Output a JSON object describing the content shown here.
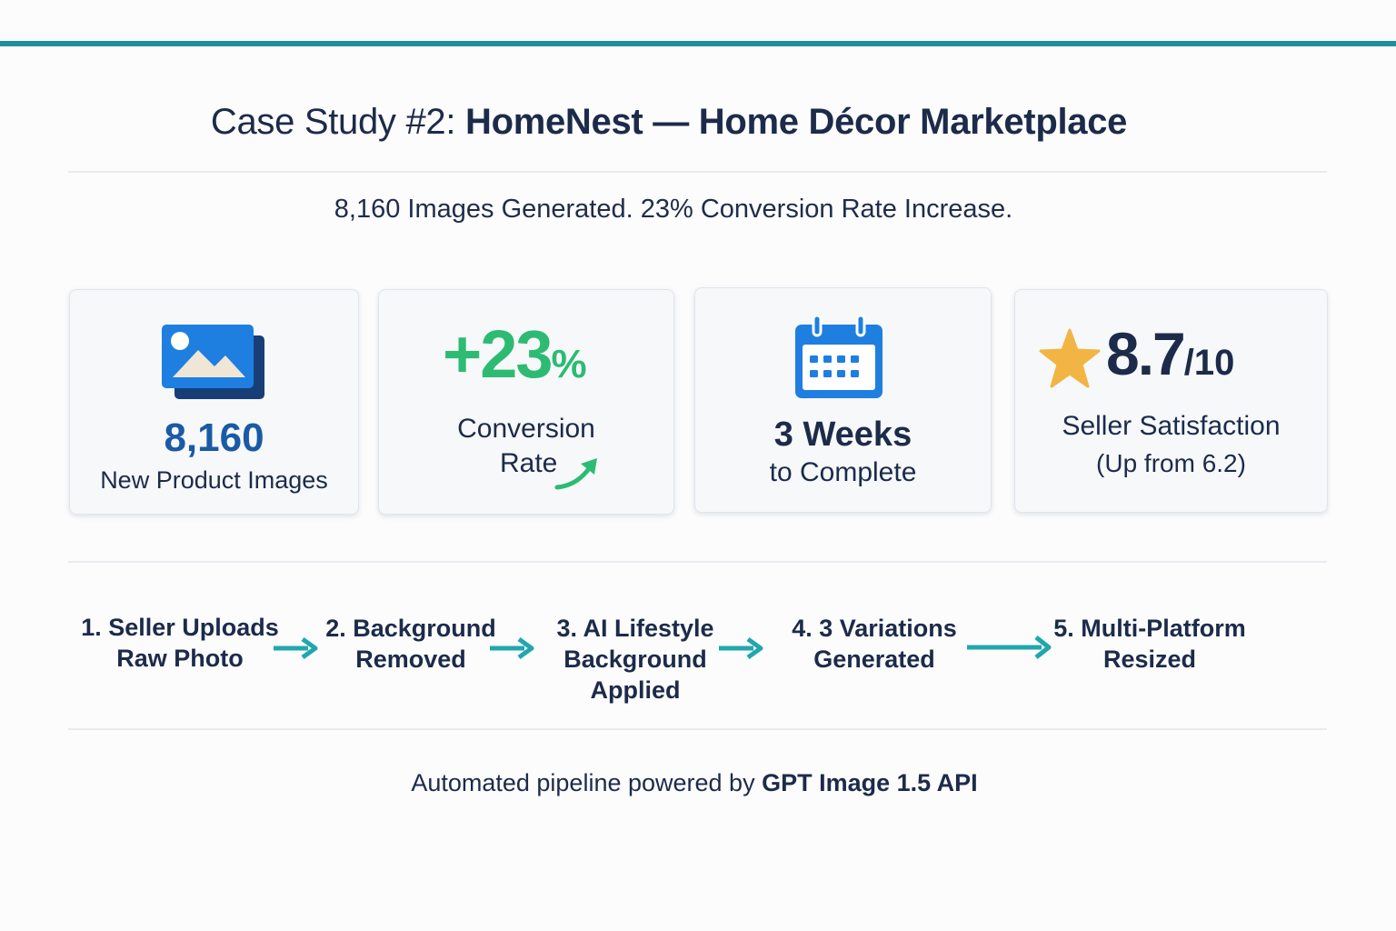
{
  "header": {
    "title_prefix": "Case Study #2:",
    "title_main": "HomeNest — Home Décor Marketplace",
    "subtitle": "8,160 Images Generated. 23% Conversion Rate Increase."
  },
  "stats": [
    {
      "icon": "image-stack-icon",
      "value": "8,160",
      "label": "New Product Images"
    },
    {
      "icon": "trend-up-arrow-icon",
      "value": "+23",
      "value_suffix": "%",
      "label_line1": "Conversion",
      "label_line2": "Rate"
    },
    {
      "icon": "calendar-icon",
      "value": "3 Weeks",
      "label": "to Complete"
    },
    {
      "icon": "star-icon",
      "value": "8.7",
      "value_suffix": "/10",
      "label_line1": "Seller Satisfaction",
      "label_line2": "(Up from 6.2)"
    }
  ],
  "pipeline": {
    "steps": [
      {
        "line1": "1. Seller Uploads",
        "line2": "Raw Photo"
      },
      {
        "line1": "2. Background",
        "line2": "Removed"
      },
      {
        "line1": "3. AI Lifestyle",
        "line2": "Background",
        "line3": "Applied"
      },
      {
        "line1": "4. 3 Variations",
        "line2": "Generated"
      },
      {
        "line1": "5. Multi-Platform",
        "line2": "Resized"
      }
    ]
  },
  "footer": {
    "text": "Automated pipeline powered by",
    "highlight": "GPT Image 1.5 API"
  },
  "colors": {
    "accent": "#1f8f9c",
    "arrow": "#22a6ae",
    "positive": "#2dbb73",
    "primary_blue": "#1a5aa6",
    "icon_blue": "#1e7fe0",
    "star": "#f2b544",
    "text": "#1c2b4a"
  }
}
